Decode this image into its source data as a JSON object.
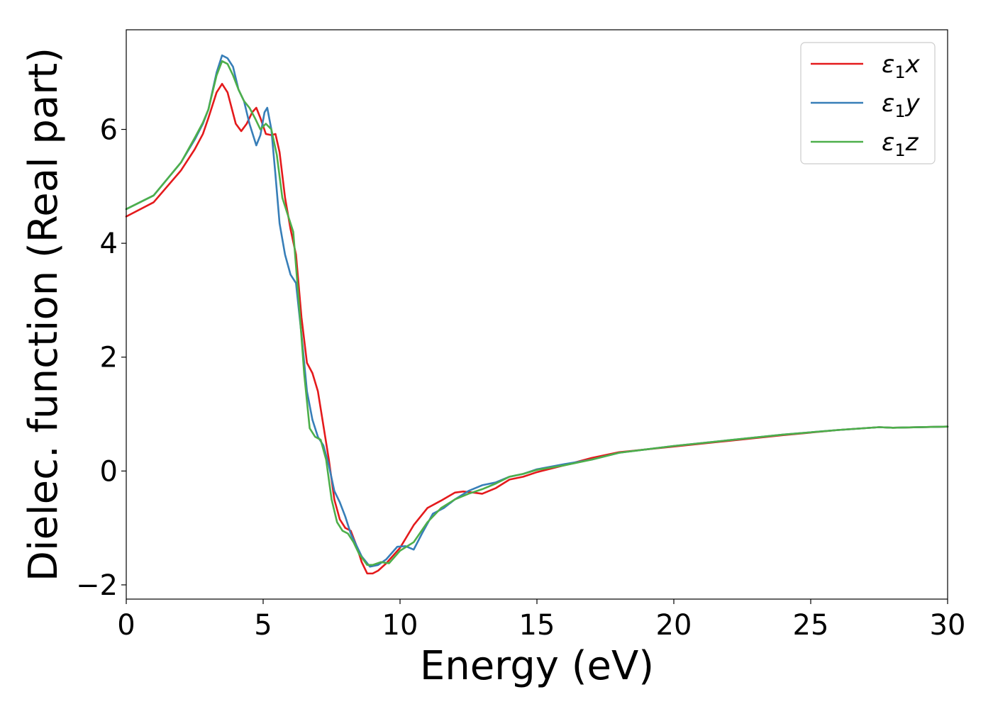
{
  "chart_data": {
    "type": "line",
    "xlabel": "Energy (eV)",
    "ylabel": "Dielec. function (Real part)",
    "xlim": [
      0,
      30
    ],
    "ylim": [
      -2.25,
      7.75
    ],
    "xticks": [
      0,
      5,
      10,
      15,
      20,
      25,
      30
    ],
    "xtick_labels": [
      "0",
      "5",
      "10",
      "15",
      "20",
      "25",
      "30"
    ],
    "yticks": [
      -2,
      0,
      2,
      4,
      6
    ],
    "ytick_labels": [
      "−2",
      "0",
      "2",
      "4",
      "6"
    ],
    "grid": false,
    "legend_position": "top-right",
    "series": [
      {
        "name": "ε1x",
        "legend_symbol": "ε",
        "legend_sub": "1",
        "legend_var": "x",
        "color": "#e41a1c",
        "x": [
          0,
          1,
          2,
          2.5,
          2.8,
          3.0,
          3.3,
          3.5,
          3.7,
          4.0,
          4.2,
          4.4,
          4.6,
          4.75,
          4.9,
          5.1,
          5.3,
          5.45,
          5.6,
          5.8,
          6.0,
          6.2,
          6.4,
          6.6,
          6.8,
          7.0,
          7.2,
          7.4,
          7.6,
          7.8,
          8.0,
          8.2,
          8.4,
          8.6,
          8.8,
          9.0,
          9.2,
          9.5,
          10.0,
          10.5,
          11.0,
          11.5,
          12.0,
          12.3,
          12.7,
          13.0,
          13.5,
          14.0,
          14.5,
          15.0,
          16.0,
          17.0,
          18.0,
          19.0,
          20.0,
          22.0,
          24.0,
          26.0,
          27.5,
          28.0,
          30.0
        ],
        "y": [
          4.47,
          4.72,
          5.28,
          5.65,
          5.92,
          6.2,
          6.65,
          6.8,
          6.65,
          6.1,
          5.97,
          6.1,
          6.3,
          6.38,
          6.2,
          5.92,
          5.9,
          5.92,
          5.6,
          4.8,
          4.25,
          3.8,
          2.7,
          1.9,
          1.72,
          1.4,
          0.8,
          0.2,
          -0.5,
          -0.85,
          -1.0,
          -1.05,
          -1.3,
          -1.6,
          -1.8,
          -1.8,
          -1.75,
          -1.62,
          -1.35,
          -0.95,
          -0.65,
          -0.52,
          -0.38,
          -0.36,
          -0.38,
          -0.4,
          -0.3,
          -0.15,
          -0.1,
          -0.02,
          0.1,
          0.23,
          0.33,
          0.38,
          0.43,
          0.53,
          0.63,
          0.72,
          0.77,
          0.76,
          0.78
        ]
      },
      {
        "name": "ε1y",
        "legend_symbol": "ε",
        "legend_sub": "1",
        "legend_var": "y",
        "color": "#377eb8",
        "x": [
          0,
          1,
          2,
          2.5,
          2.8,
          3.0,
          3.3,
          3.5,
          3.7,
          3.9,
          4.1,
          4.3,
          4.5,
          4.75,
          4.9,
          5.05,
          5.15,
          5.3,
          5.45,
          5.6,
          5.8,
          6.0,
          6.2,
          6.4,
          6.6,
          6.8,
          7.0,
          7.2,
          7.4,
          7.6,
          7.8,
          8.0,
          8.2,
          8.4,
          8.6,
          8.9,
          9.2,
          9.5,
          9.9,
          10.2,
          10.5,
          10.8,
          11.2,
          11.6,
          12.0,
          12.5,
          13.0,
          13.5,
          14.0,
          14.5,
          15.0,
          16.0,
          17.0,
          18.0,
          19.0,
          20.0,
          22.0,
          24.0,
          26.0,
          27.5,
          28.0,
          30.0
        ],
        "y": [
          4.6,
          4.84,
          5.42,
          5.82,
          6.1,
          6.35,
          7.0,
          7.3,
          7.25,
          7.1,
          6.7,
          6.5,
          6.1,
          5.72,
          5.9,
          6.3,
          6.38,
          6.0,
          5.2,
          4.35,
          3.8,
          3.45,
          3.3,
          2.4,
          1.4,
          0.9,
          0.6,
          0.45,
          0.1,
          -0.35,
          -0.55,
          -0.8,
          -1.1,
          -1.3,
          -1.5,
          -1.68,
          -1.65,
          -1.55,
          -1.33,
          -1.32,
          -1.38,
          -1.1,
          -0.75,
          -0.65,
          -0.5,
          -0.35,
          -0.25,
          -0.2,
          -0.1,
          -0.05,
          0.03,
          0.12,
          0.2,
          0.32,
          0.38,
          0.44,
          0.54,
          0.64,
          0.72,
          0.77,
          0.76,
          0.78
        ]
      },
      {
        "name": "ε1z",
        "legend_symbol": "ε",
        "legend_sub": "1",
        "legend_var": "z",
        "color": "#4daf4a",
        "x": [
          0,
          1,
          2,
          2.5,
          2.8,
          3.0,
          3.3,
          3.5,
          3.7,
          3.9,
          4.1,
          4.3,
          4.5,
          4.7,
          4.9,
          5.1,
          5.3,
          5.5,
          5.7,
          5.9,
          6.1,
          6.3,
          6.5,
          6.7,
          6.9,
          7.1,
          7.3,
          7.5,
          7.7,
          7.9,
          8.1,
          8.3,
          8.5,
          8.8,
          9.0,
          9.3,
          9.6,
          10.0,
          10.5,
          11.0,
          11.5,
          12.0,
          12.5,
          13.0,
          13.5,
          14.0,
          14.5,
          15.0,
          16.0,
          17.0,
          18.0,
          19.0,
          20.0,
          22.0,
          24.0,
          26.0,
          27.5,
          28.0,
          30.0
        ],
        "y": [
          4.6,
          4.84,
          5.42,
          5.85,
          6.12,
          6.35,
          6.95,
          7.2,
          7.15,
          6.95,
          6.7,
          6.5,
          6.38,
          6.2,
          6.0,
          6.1,
          6.0,
          5.55,
          4.8,
          4.5,
          4.2,
          3.0,
          1.7,
          0.75,
          0.6,
          0.55,
          0.2,
          -0.5,
          -0.9,
          -1.05,
          -1.1,
          -1.25,
          -1.45,
          -1.65,
          -1.65,
          -1.6,
          -1.62,
          -1.4,
          -1.25,
          -0.9,
          -0.65,
          -0.5,
          -0.4,
          -0.32,
          -0.22,
          -0.1,
          -0.05,
          0.02,
          0.1,
          0.2,
          0.32,
          0.38,
          0.44,
          0.54,
          0.64,
          0.72,
          0.77,
          0.76,
          0.78
        ]
      }
    ]
  }
}
